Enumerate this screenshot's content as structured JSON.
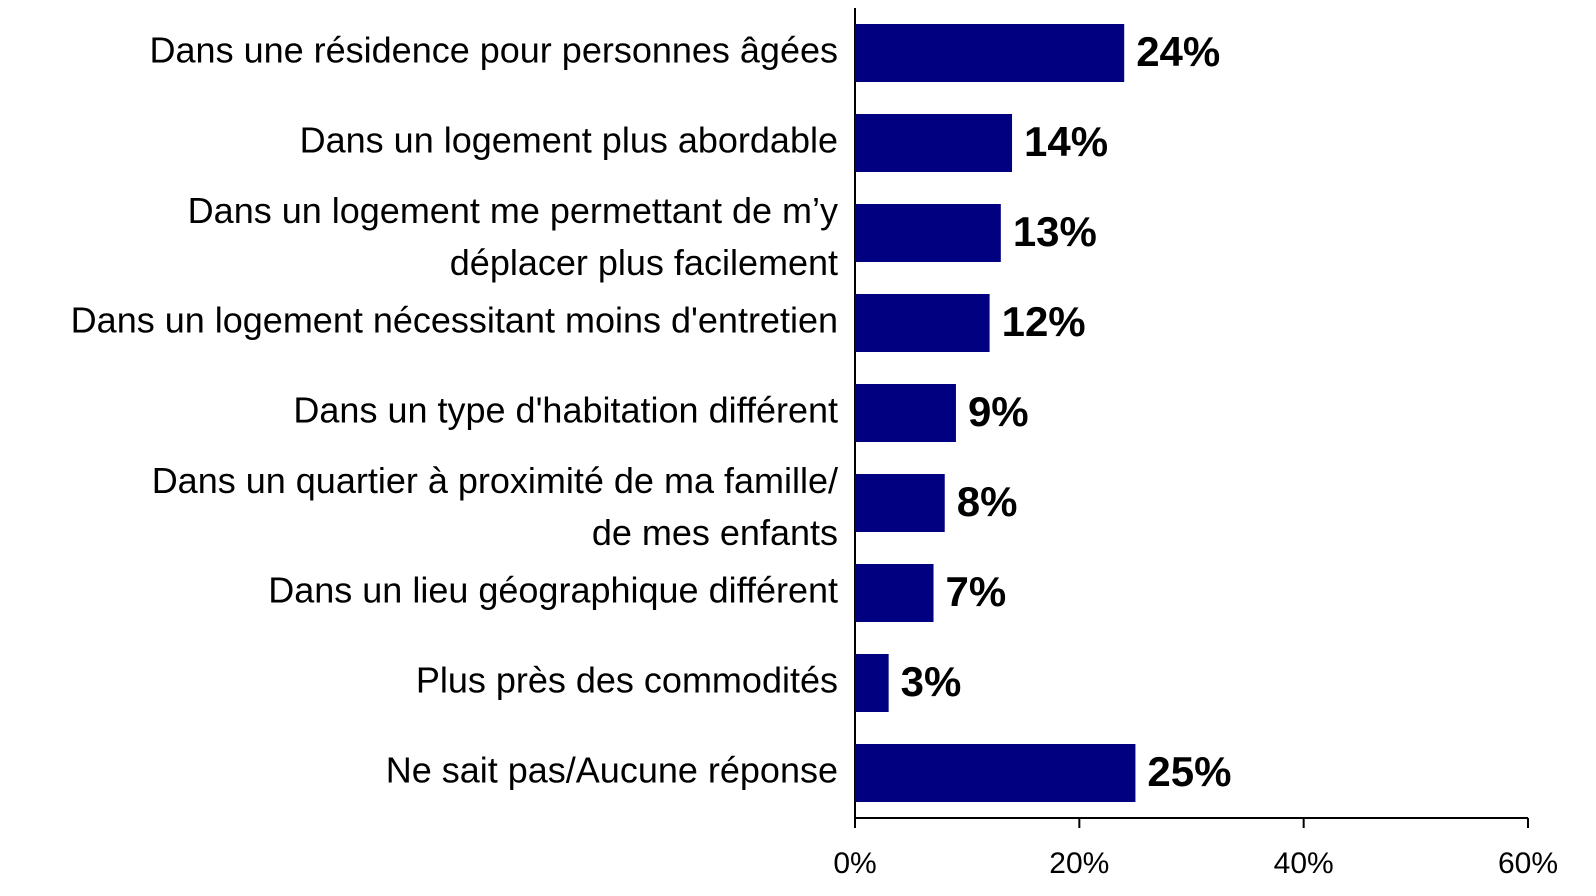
{
  "chart_data": {
    "type": "bar",
    "orientation": "horizontal",
    "categories": [
      "Dans une résidence pour personnes âgées",
      "Dans un logement plus abordable",
      "Dans un logement me permettant de m’y\ndéplacer plus facilement",
      "Dans un logement nécessitant moins d'entretien",
      "Dans un type d'habitation différent",
      "Dans un quartier à proximité de ma famille/\nde mes enfants",
      "Dans un lieu géographique différent",
      "Plus près des commodités",
      "Ne sait pas/Aucune réponse"
    ],
    "values": [
      24,
      14,
      13,
      12,
      9,
      8,
      7,
      3,
      25
    ],
    "value_labels": [
      "24%",
      "14%",
      "13%",
      "12%",
      "9%",
      "8%",
      "7%",
      "3%",
      "25%"
    ],
    "color": "#000080",
    "xlim": [
      0,
      60
    ],
    "xticks": [
      {
        "value": 0,
        "label": "0%"
      },
      {
        "value": 20,
        "label": "20%"
      },
      {
        "value": 40,
        "label": "40%"
      },
      {
        "value": 60,
        "label": "60%"
      }
    ]
  }
}
